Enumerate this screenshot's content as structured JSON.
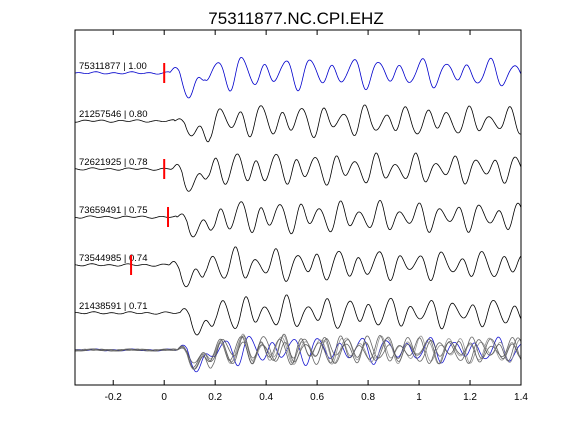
{
  "chart_data": {
    "type": "line",
    "title": "75311877.NC.CPI.EHZ",
    "xlabel": "",
    "ylabel": "",
    "xlim": [
      -0.35,
      1.4
    ],
    "xticks": [
      -0.2,
      0,
      0.2,
      0.4,
      0.6,
      0.8,
      1,
      1.2,
      1.4
    ],
    "xtick_labels": [
      "-0.2",
      "0",
      "0.2",
      "0.4",
      "0.6",
      "0.8",
      "1",
      "1.2",
      "1.4"
    ],
    "grid": false,
    "traces": [
      {
        "event": "75311877",
        "cc": "1.00",
        "label": "75311877 | 1.00",
        "color": "#0000cc",
        "pick": 0.0
      },
      {
        "event": "21257546",
        "cc": "0.80",
        "label": "21257546 | 0.80",
        "color": "#000000",
        "pick": null
      },
      {
        "event": "72621925",
        "cc": "0.78",
        "label": "72621925 | 0.78",
        "color": "#000000",
        "pick": 0.0
      },
      {
        "event": "73659491",
        "cc": "0.75",
        "label": "73659491 | 0.75",
        "color": "#000000",
        "pick": 0.015
      },
      {
        "event": "73544985",
        "cc": "0.74",
        "label": "73544985 | 0.74",
        "color": "#000000",
        "pick": -0.13
      },
      {
        "event": "21438591",
        "cc": "0.71",
        "label": "21438591 | 0.71",
        "color": "#000000",
        "pick": null
      }
    ],
    "stack": {
      "description": "overlay of all aligned traces",
      "colors": [
        "#0000cc",
        "#555555",
        "#888888"
      ]
    },
    "pick_color": "#ff0000"
  }
}
